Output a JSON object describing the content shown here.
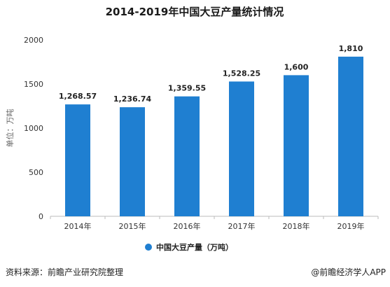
{
  "chart_data": {
    "type": "bar",
    "title": "2014-2019年中国大豆产量统计情况",
    "categories": [
      "2014年",
      "2015年",
      "2016年",
      "2017年",
      "2018年",
      "2019年"
    ],
    "series": [
      {
        "name": "中国大豆产量（万吨）",
        "values": [
          1268.57,
          1236.74,
          1359.55,
          1528.25,
          1600,
          1810
        ],
        "labels": [
          "1,268.57",
          "1,236.74",
          "1,359.55",
          "1,528.25",
          "1,600",
          "1,810"
        ]
      }
    ],
    "ylabel": "单位：万吨",
    "ylim": [
      0,
      2000
    ],
    "yticks": [
      "0",
      "500",
      "1000",
      "1500",
      "2000"
    ],
    "grid": false,
    "legend_position": "bottom",
    "bar_color": "#1f7fd1"
  },
  "footer": {
    "source": "资料来源：前瞻产业研究院整理",
    "brand": "@前瞻经济学人APP"
  }
}
